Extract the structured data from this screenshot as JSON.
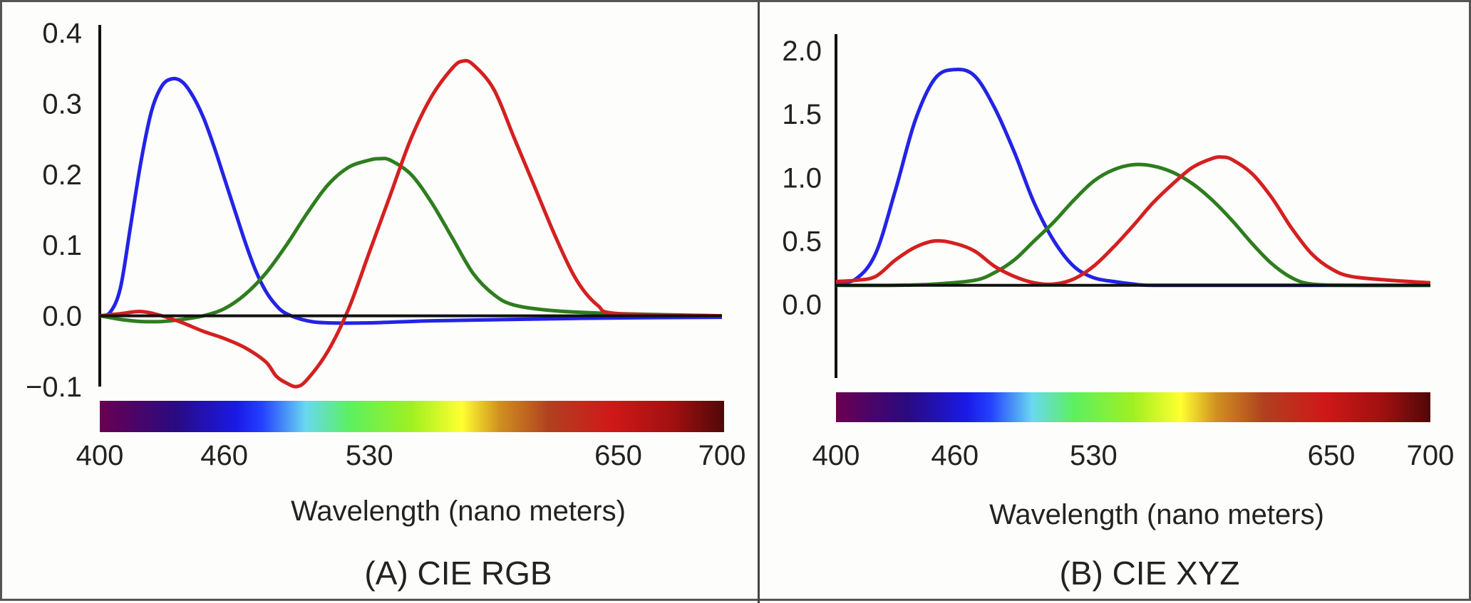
{
  "chart_data": [
    {
      "type": "line",
      "caption": "(A) CIE RGB",
      "xlabel": "Wavelength (nano meters)",
      "ylabel": "",
      "xlim": [
        400,
        700
      ],
      "ylim": [
        -0.1,
        0.4
      ],
      "xticks": [
        {
          "value": 400,
          "label": "400"
        },
        {
          "value": 460,
          "label": "460"
        },
        {
          "value": 530,
          "label": "530"
        },
        {
          "value": 650,
          "label": "650"
        },
        {
          "value": 700,
          "label": "700"
        }
      ],
      "yticks": [
        {
          "value": 0.4,
          "label": "0.4"
        },
        {
          "value": 0.3,
          "label": "0.3"
        },
        {
          "value": 0.2,
          "label": "0.2"
        },
        {
          "value": 0.1,
          "label": "0.1"
        },
        {
          "value": 0.0,
          "label": "0.0"
        },
        {
          "value": -0.1,
          "label": "−0.1"
        }
      ],
      "baseline": 0.0,
      "series": [
        {
          "color": "#2323e6",
          "points": [
            [
              400,
              0.0
            ],
            [
              405,
              0.005
            ],
            [
              410,
              0.04
            ],
            [
              415,
              0.13
            ],
            [
              420,
              0.22
            ],
            [
              425,
              0.29
            ],
            [
              430,
              0.325
            ],
            [
              435,
              0.335
            ],
            [
              440,
              0.33
            ],
            [
              445,
              0.31
            ],
            [
              450,
              0.28
            ],
            [
              455,
              0.24
            ],
            [
              460,
              0.195
            ],
            [
              465,
              0.15
            ],
            [
              470,
              0.105
            ],
            [
              475,
              0.065
            ],
            [
              480,
              0.035
            ],
            [
              485,
              0.015
            ],
            [
              490,
              0.003
            ],
            [
              500,
              -0.007
            ],
            [
              510,
              -0.01
            ],
            [
              530,
              -0.01
            ],
            [
              560,
              -0.007
            ],
            [
              600,
              -0.005
            ],
            [
              650,
              -0.003
            ],
            [
              700,
              -0.002
            ]
          ]
        },
        {
          "color": "#2e7d1e",
          "points": [
            [
              400,
              0.0
            ],
            [
              410,
              -0.005
            ],
            [
              420,
              -0.008
            ],
            [
              430,
              -0.008
            ],
            [
              440,
              -0.005
            ],
            [
              450,
              0.0
            ],
            [
              460,
              0.01
            ],
            [
              470,
              0.03
            ],
            [
              480,
              0.06
            ],
            [
              490,
              0.1
            ],
            [
              500,
              0.145
            ],
            [
              510,
              0.185
            ],
            [
              520,
              0.21
            ],
            [
              530,
              0.22
            ],
            [
              535,
              0.222
            ],
            [
              540,
              0.22
            ],
            [
              550,
              0.2
            ],
            [
              560,
              0.16
            ],
            [
              570,
              0.11
            ],
            [
              580,
              0.06
            ],
            [
              590,
              0.03
            ],
            [
              600,
              0.015
            ],
            [
              620,
              0.007
            ],
            [
              650,
              0.003
            ],
            [
              700,
              0.0
            ]
          ]
        },
        {
          "color": "#d42020",
          "points": [
            [
              400,
              0.0
            ],
            [
              410,
              0.003
            ],
            [
              420,
              0.006
            ],
            [
              430,
              0.0
            ],
            [
              440,
              -0.01
            ],
            [
              450,
              -0.022
            ],
            [
              460,
              -0.032
            ],
            [
              470,
              -0.045
            ],
            [
              480,
              -0.065
            ],
            [
              485,
              -0.085
            ],
            [
              490,
              -0.095
            ],
            [
              495,
              -0.1
            ],
            [
              500,
              -0.09
            ],
            [
              510,
              -0.05
            ],
            [
              520,
              0.01
            ],
            [
              530,
              0.09
            ],
            [
              540,
              0.17
            ],
            [
              550,
              0.25
            ],
            [
              560,
              0.31
            ],
            [
              570,
              0.35
            ],
            [
              575,
              0.36
            ],
            [
              580,
              0.355
            ],
            [
              590,
              0.32
            ],
            [
              600,
              0.25
            ],
            [
              610,
              0.18
            ],
            [
              620,
              0.11
            ],
            [
              630,
              0.05
            ],
            [
              640,
              0.015
            ],
            [
              650,
              0.003
            ],
            [
              700,
              0.0
            ]
          ]
        }
      ]
    },
    {
      "type": "line",
      "caption": "(B) CIE XYZ",
      "xlabel": "Wavelength (nano meters)",
      "ylabel": "",
      "xlim": [
        400,
        700
      ],
      "ylim": [
        -0.3,
        2.0
      ],
      "xticks": [
        {
          "value": 400,
          "label": "400"
        },
        {
          "value": 460,
          "label": "460"
        },
        {
          "value": 530,
          "label": "530"
        },
        {
          "value": 650,
          "label": "650"
        },
        {
          "value": 700,
          "label": "700"
        }
      ],
      "yticks": [
        {
          "value": 2.0,
          "label": "2.0"
        },
        {
          "value": 1.5,
          "label": "1.5"
        },
        {
          "value": 1.0,
          "label": "1.0"
        },
        {
          "value": 0.5,
          "label": "0.5"
        },
        {
          "value": 0.0,
          "label": "0.0"
        }
      ],
      "baseline": 0.15,
      "series": [
        {
          "color": "#2323e6",
          "points": [
            [
              400,
              0.17
            ],
            [
              410,
              0.2
            ],
            [
              420,
              0.4
            ],
            [
              430,
              0.9
            ],
            [
              440,
              1.45
            ],
            [
              450,
              1.78
            ],
            [
              460,
              1.85
            ],
            [
              470,
              1.8
            ],
            [
              480,
              1.55
            ],
            [
              490,
              1.2
            ],
            [
              500,
              0.8
            ],
            [
              510,
              0.5
            ],
            [
              520,
              0.3
            ],
            [
              530,
              0.21
            ],
            [
              540,
              0.18
            ],
            [
              550,
              0.16
            ],
            [
              560,
              0.15
            ],
            [
              600,
              0.15
            ],
            [
              700,
              0.15
            ]
          ]
        },
        {
          "color": "#2e7d1e",
          "points": [
            [
              400,
              0.15
            ],
            [
              430,
              0.15
            ],
            [
              450,
              0.16
            ],
            [
              470,
              0.19
            ],
            [
              480,
              0.25
            ],
            [
              490,
              0.35
            ],
            [
              500,
              0.5
            ],
            [
              510,
              0.65
            ],
            [
              520,
              0.82
            ],
            [
              530,
              0.97
            ],
            [
              540,
              1.06
            ],
            [
              550,
              1.1
            ],
            [
              560,
              1.09
            ],
            [
              570,
              1.04
            ],
            [
              580,
              0.95
            ],
            [
              590,
              0.82
            ],
            [
              600,
              0.66
            ],
            [
              610,
              0.48
            ],
            [
              620,
              0.32
            ],
            [
              630,
              0.21
            ],
            [
              640,
              0.16
            ],
            [
              660,
              0.15
            ],
            [
              700,
              0.15
            ]
          ]
        },
        {
          "color": "#d42020",
          "points": [
            [
              400,
              0.18
            ],
            [
              410,
              0.19
            ],
            [
              420,
              0.22
            ],
            [
              430,
              0.35
            ],
            [
              440,
              0.45
            ],
            [
              450,
              0.5
            ],
            [
              460,
              0.48
            ],
            [
              470,
              0.42
            ],
            [
              480,
              0.3
            ],
            [
              490,
              0.22
            ],
            [
              500,
              0.17
            ],
            [
              510,
              0.16
            ],
            [
              520,
              0.2
            ],
            [
              530,
              0.3
            ],
            [
              540,
              0.45
            ],
            [
              550,
              0.62
            ],
            [
              560,
              0.8
            ],
            [
              570,
              0.95
            ],
            [
              580,
              1.08
            ],
            [
              590,
              1.15
            ],
            [
              595,
              1.16
            ],
            [
              600,
              1.14
            ],
            [
              610,
              1.03
            ],
            [
              620,
              0.84
            ],
            [
              630,
              0.6
            ],
            [
              640,
              0.4
            ],
            [
              650,
              0.28
            ],
            [
              660,
              0.22
            ],
            [
              680,
              0.19
            ],
            [
              700,
              0.17
            ]
          ]
        }
      ]
    }
  ]
}
